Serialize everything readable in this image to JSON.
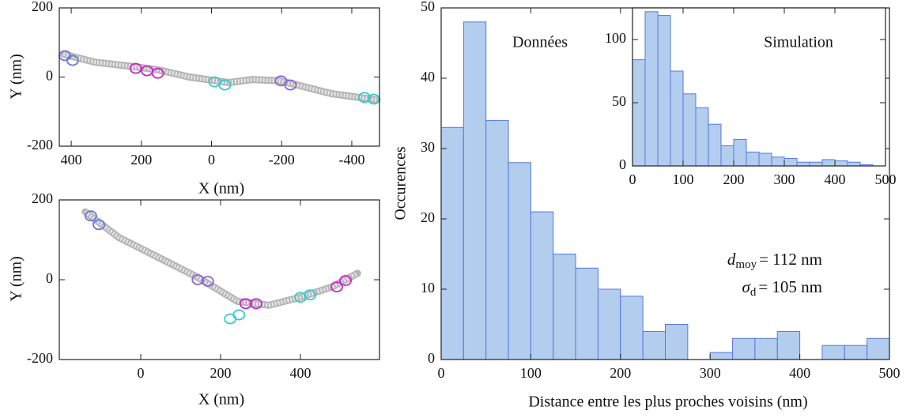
{
  "chart_data": [
    {
      "type": "scatter",
      "xlabel": "X (nm)",
      "ylabel": "Y (nm)",
      "xlim": [
        434,
        -479
      ],
      "ylim": [
        -200,
        200
      ],
      "xticks": [
        400,
        200,
        0,
        -200,
        -400
      ],
      "yticks": [
        -200,
        0,
        200
      ],
      "series": [
        {
          "marker": "line",
          "color": "#b5b5b5",
          "x": [
            422,
            332,
            220,
            153,
            63,
            0,
            -49,
            -117,
            -195,
            -252,
            -342,
            -472
          ],
          "y": [
            66,
            43,
            30,
            21,
            0,
            -9,
            -16,
            -7,
            -11,
            -25,
            -48,
            -66
          ]
        },
        {
          "marker": "ring",
          "color": "#6677dd",
          "x": [
            418,
            396
          ],
          "y": [
            62,
            48
          ]
        },
        {
          "marker": "ring",
          "color": "#cc22cc",
          "x": [
            216,
            184,
            153
          ],
          "y": [
            25,
            18,
            11
          ]
        },
        {
          "marker": "ring",
          "color": "#33cccc",
          "x": [
            -9,
            -38,
            -436,
            -463
          ],
          "y": [
            -14,
            -23,
            -59,
            -64
          ]
        },
        {
          "marker": "ring",
          "color": "#8866dd",
          "x": [
            -198,
            -225
          ],
          "y": [
            -11,
            -23
          ]
        }
      ]
    },
    {
      "type": "scatter",
      "xlabel": "X (nm)",
      "ylabel": "Y (nm)",
      "xlim": [
        -204,
        598
      ],
      "ylim": [
        -200,
        200
      ],
      "xticks": [
        0,
        200,
        400
      ],
      "yticks": [
        -200,
        0,
        200
      ],
      "series": [
        {
          "marker": "line",
          "color": "#b5b5b5",
          "x": [
            -139,
            -55,
            44,
            143,
            242,
            321,
            400,
            479,
            543
          ],
          "y": [
            170,
            106,
            56,
            6,
            -54,
            -64,
            -44,
            -18,
            16
          ]
        },
        {
          "marker": "ring",
          "color": "#6677dd",
          "x": [
            -125,
            -105
          ],
          "y": [
            160,
            138
          ]
        },
        {
          "marker": "ring",
          "color": "#8866dd",
          "x": [
            143,
            168
          ],
          "y": [
            0,
            -4
          ]
        },
        {
          "marker": "ring",
          "color": "#cc22cc",
          "x": [
            263,
            289,
            491,
            513
          ],
          "y": [
            -60,
            -60,
            -18,
            -2
          ]
        },
        {
          "marker": "ring",
          "color": "#33cccc",
          "x": [
            224,
            246,
            400,
            424
          ],
          "y": [
            -98,
            -88,
            -44,
            -38
          ]
        }
      ]
    },
    {
      "type": "histogram",
      "label": "Données",
      "xlabel": "Distance entre les plus proches voisins (nm)",
      "ylabel": "Occurences",
      "xlim": [
        0,
        500
      ],
      "ylim": [
        0,
        50
      ],
      "xticks": [
        0,
        100,
        200,
        300,
        400,
        500
      ],
      "yticks": [
        0,
        10,
        20,
        30,
        40,
        50
      ],
      "color": "#b3cdee",
      "edge_color": "#5577dd",
      "bins": [
        0,
        25,
        50,
        75,
        100,
        125,
        150,
        175,
        200,
        225,
        250,
        275,
        300,
        325,
        350,
        375,
        400,
        425,
        450,
        475,
        500
      ],
      "values": [
        33,
        48,
        34,
        28,
        21,
        15,
        13,
        10,
        9,
        4,
        5,
        0,
        1,
        3,
        3,
        4,
        0,
        2,
        2,
        3
      ],
      "annotations": [
        {
          "symbol": "d",
          "subscript": "moy",
          "text": "= 112 nm"
        },
        {
          "symbol": "σ",
          "subscript": "d",
          "text": "= 105 nm"
        }
      ]
    },
    {
      "type": "histogram",
      "label": "Simulation",
      "xlim": [
        0,
        500
      ],
      "ylim": [
        0,
        125
      ],
      "xticks": [
        0,
        100,
        200,
        300,
        400,
        500
      ],
      "yticks": [
        0,
        50,
        100
      ],
      "color": "#b3cdee",
      "edge_color": "#5577dd",
      "bins": [
        0,
        25,
        50,
        75,
        100,
        125,
        150,
        175,
        200,
        225,
        250,
        275,
        300,
        325,
        350,
        375,
        400,
        425,
        450,
        475
      ],
      "values": [
        84,
        122,
        119,
        75,
        57,
        46,
        33,
        16,
        21,
        11,
        10,
        7,
        6,
        3,
        3,
        5,
        4,
        3,
        1
      ]
    }
  ]
}
